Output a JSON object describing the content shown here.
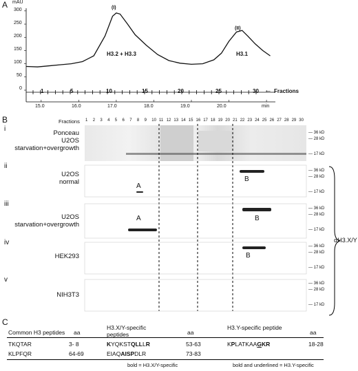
{
  "panelA": {
    "letter": "A",
    "y_unit": "mAU",
    "y_ticks": [
      "300",
      "250",
      "200",
      "150",
      "100",
      "50",
      "0"
    ],
    "peak1_label": "(I)",
    "peak1_text": "H3.2 + H3.3",
    "peak2_label": "(II)",
    "peak2_text": "H3.1",
    "fraction_ticks": [
      "1",
      "5",
      "10",
      "15",
      "20",
      "25",
      "30"
    ],
    "fractions_label": "Fractions",
    "time_ticks": [
      "15.0",
      "16.0",
      "17.0",
      "18.0",
      "19.0",
      "20.0"
    ],
    "time_unit": "min"
  },
  "chart_data": {
    "type": "line",
    "ylabel": "mAU",
    "xlabel": "min",
    "xlim": [
      14.6,
      21.2
    ],
    "ylim": [
      0,
      310
    ],
    "x": [
      14.6,
      14.9,
      15.2,
      15.5,
      15.8,
      16.1,
      16.4,
      16.7,
      16.9,
      17.0,
      17.1,
      17.3,
      17.5,
      17.8,
      18.1,
      18.4,
      18.7,
      19.0,
      19.3,
      19.6,
      19.8,
      20.0,
      20.2,
      20.35,
      20.5,
      20.7,
      20.9,
      21.1
    ],
    "y": [
      90,
      88,
      92,
      96,
      100,
      108,
      130,
      205,
      280,
      292,
      288,
      250,
      210,
      170,
      135,
      112,
      102,
      98,
      100,
      115,
      140,
      185,
      220,
      226,
      205,
      175,
      150,
      130
    ]
  },
  "panelB": {
    "letter": "B",
    "fractions_label": "Fractions",
    "fractions": [
      "1",
      "2",
      "3",
      "4",
      "5",
      "6",
      "7",
      "8",
      "9",
      "10",
      "11",
      "12",
      "13",
      "14",
      "15",
      "16",
      "17",
      "18",
      "19",
      "20",
      "21",
      "22",
      "23",
      "24",
      "25",
      "26",
      "27",
      "28",
      "29",
      "30"
    ],
    "rows": [
      {
        "numeral": "i",
        "sample": [
          "Ponceau",
          "U2OS",
          "starvation+overgrowth"
        ],
        "markers": [
          "36 kD",
          "28 kD",
          "17 kD"
        ],
        "band": ""
      },
      {
        "numeral": "ii",
        "sample": [
          "U2OS",
          "normal"
        ],
        "markers": [
          "36 kD",
          "28 kD",
          "17 kD"
        ],
        "band": "A",
        "band2": "B"
      },
      {
        "numeral": "iii",
        "sample": [
          "U2OS",
          "starvation+overgrowth"
        ],
        "markers": [
          "36 kD",
          "28 kD",
          "17 kD"
        ],
        "band": "A",
        "band2": "B"
      },
      {
        "numeral": "iv",
        "sample": [
          "HEK293"
        ],
        "markers": [
          "36 kD",
          "28 kD",
          "17 kD"
        ],
        "band": "",
        "band2": "B"
      },
      {
        "numeral": "v",
        "sample": [
          "NIH3T3"
        ],
        "markers": [
          "36 kD",
          "28 kD",
          "17 kD"
        ],
        "band": "",
        "band2": ""
      }
    ],
    "antibody": "αH3.X/Y"
  },
  "panelC": {
    "letter": "C",
    "col1_header": "Common H3 peptides",
    "col1_aa": "aa",
    "col2_header": "H3.X/Y-specific peptides",
    "col2_aa": "aa",
    "col3_header": "H3.Y-specific peptide",
    "col3_aa": "aa",
    "rows": [
      {
        "common": "TKQTAR",
        "common_aa": "3- 8",
        "xy_aa": "53-63",
        "y_aa": "18-28"
      },
      {
        "common": "KLPFQR",
        "common_aa": "64-69",
        "xy_aa": "73-83",
        "y_aa": ""
      }
    ],
    "xy_peptide1": [
      "K",
      "YQKST",
      "Q",
      "LL",
      "L",
      "R"
    ],
    "xy_peptide2": [
      "EIAQ",
      "AISP",
      "DLR"
    ],
    "y_peptide": [
      "K",
      "P",
      "LATKAA",
      "G",
      "K",
      "R"
    ],
    "note1": "bold = H3.X/Y-specific",
    "note2": "bold and underlined = H3.Y-specific"
  }
}
